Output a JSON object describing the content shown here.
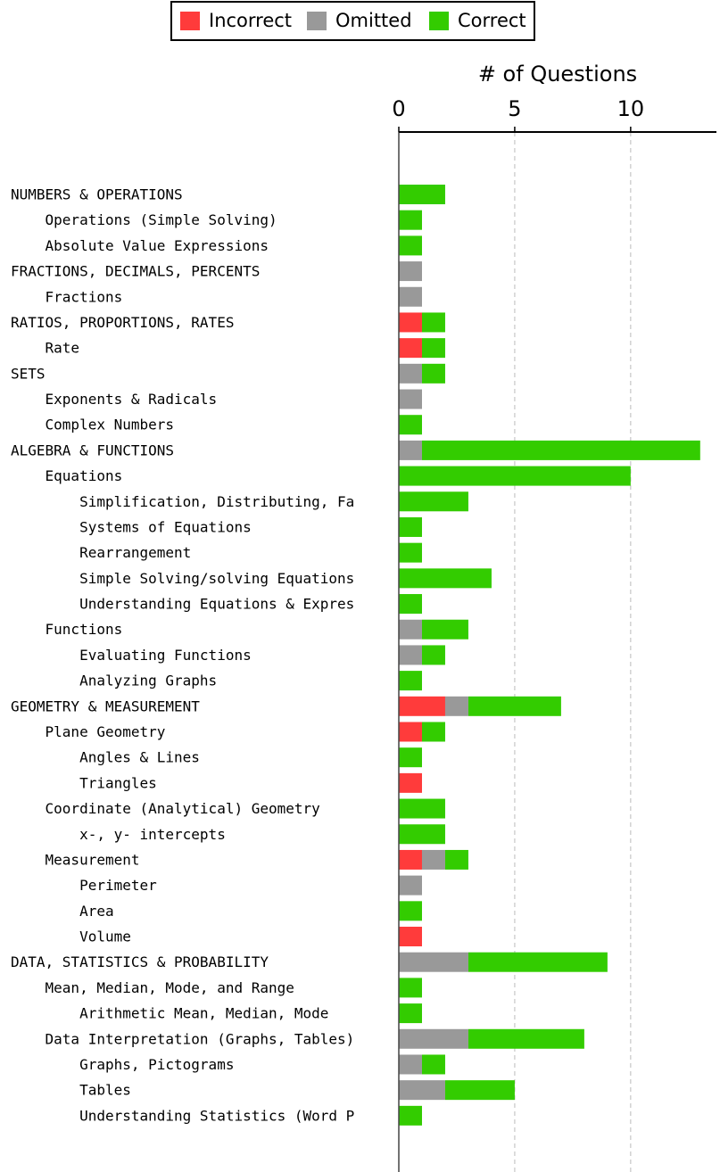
{
  "chart_data": {
    "type": "barh_stacked",
    "xlabel": "# of Questions",
    "xlim": [
      0,
      13.7
    ],
    "xticks": [
      0,
      5,
      10
    ],
    "grid": true,
    "legend": "top",
    "categories": [
      "NUMBERS & OPERATIONS",
      "    Operations (Simple Solving)",
      "    Absolute Value Expressions",
      "FRACTIONS, DECIMALS, PERCENTS",
      "    Fractions",
      "RATIOS, PROPORTIONS, RATES",
      "    Rate",
      "SETS",
      "    Exponents & Radicals",
      "    Complex Numbers",
      "ALGEBRA & FUNCTIONS",
      "    Equations",
      "        Simplification, Distributing, Fa",
      "        Systems of Equations",
      "        Rearrangement",
      "        Simple Solving/solving Equations",
      "        Understanding Equations & Expres",
      "    Functions",
      "        Evaluating Functions",
      "        Analyzing Graphs",
      "GEOMETRY & MEASUREMENT",
      "    Plane Geometry",
      "        Angles & Lines",
      "        Triangles",
      "    Coordinate (Analytical) Geometry",
      "        x-, y- intercepts",
      "    Measurement",
      "        Perimeter",
      "        Area",
      "        Volume",
      "DATA, STATISTICS & PROBABILITY",
      "    Mean, Median, Mode, and Range",
      "        Arithmetic Mean, Median, Mode",
      "    Data Interpretation (Graphs, Tables)",
      "        Graphs, Pictograms",
      "        Tables",
      "        Understanding Statistics (Word P"
    ],
    "series": [
      {
        "name": "Incorrect",
        "color": "#ff3b3b",
        "values": [
          0,
          0,
          0,
          0,
          0,
          1,
          1,
          0,
          0,
          0,
          0,
          0,
          0,
          0,
          0,
          0,
          0,
          0,
          0,
          0,
          2,
          1,
          0,
          1,
          0,
          0,
          1,
          0,
          0,
          1,
          0,
          0,
          0,
          0,
          0,
          0,
          0
        ]
      },
      {
        "name": "Omitted",
        "color": "#999999",
        "values": [
          0,
          0,
          0,
          1,
          1,
          0,
          0,
          1,
          1,
          0,
          1,
          0,
          0,
          0,
          0,
          0,
          0,
          1,
          1,
          0,
          1,
          0,
          0,
          0,
          0,
          0,
          1,
          1,
          0,
          0,
          3,
          0,
          0,
          3,
          1,
          2,
          0
        ]
      },
      {
        "name": "Correct",
        "color": "#33cc00",
        "values": [
          2,
          1,
          1,
          0,
          0,
          1,
          1,
          1,
          0,
          1,
          12,
          10,
          3,
          1,
          1,
          4,
          1,
          2,
          1,
          1,
          4,
          1,
          1,
          0,
          2,
          2,
          1,
          0,
          1,
          0,
          6,
          1,
          1,
          5,
          1,
          3,
          1
        ]
      }
    ]
  }
}
